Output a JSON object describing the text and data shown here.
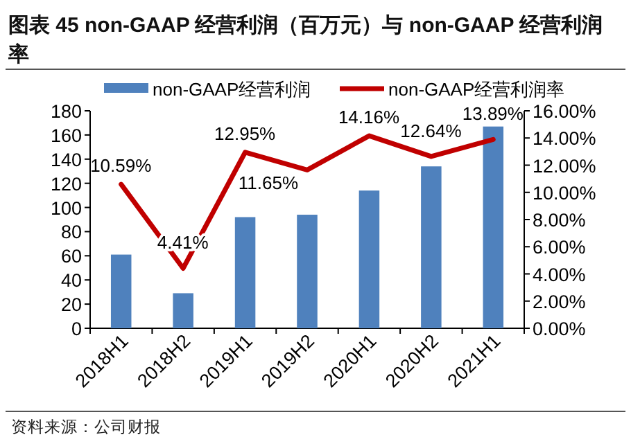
{
  "chart_data": {
    "type": "bar",
    "title": "图表 45  non-GAAP 经营利润（百万元）与 non-GAAP 经营利润率",
    "categories": [
      "2018H1",
      "2018H2",
      "2019H1",
      "2019H2",
      "2020H1",
      "2020H2",
      "2021H1"
    ],
    "series": [
      {
        "name": "non-GAAP经营利润",
        "color": "#4f81bd",
        "values": [
          61,
          29,
          92,
          94,
          114,
          134,
          167
        ]
      },
      {
        "name": "non-GAAP经营利润率",
        "type": "line",
        "axis": "y2",
        "color": "#c00000",
        "values": [
          10.59,
          4.41,
          12.95,
          11.65,
          14.16,
          12.64,
          13.89
        ],
        "value_labels": [
          "10.59%",
          "4.41%",
          "12.95%",
          "11.65%",
          "14.16%",
          "12.64%",
          "13.89%"
        ]
      }
    ],
    "ylim": [
      0,
      180
    ],
    "yticks": [
      0,
      20,
      40,
      60,
      80,
      100,
      120,
      140,
      160,
      180
    ],
    "y2lim": [
      0,
      16
    ],
    "y2ticks": [
      {
        "value": 0,
        "label": "0.00%"
      },
      {
        "value": 2,
        "label": "2.00%"
      },
      {
        "value": 4,
        "label": "4.00%"
      },
      {
        "value": 6,
        "label": "6.00%"
      },
      {
        "value": 8,
        "label": "8.00%"
      },
      {
        "value": 10,
        "label": "10.00%"
      },
      {
        "value": 12,
        "label": "12.00%"
      },
      {
        "value": 14,
        "label": "14.00%"
      },
      {
        "value": 16,
        "label": "16.00%"
      }
    ],
    "legend": "top",
    "grid": false,
    "marker": "none",
    "line_style": "solid",
    "annotations": [
      "资料来源：公司财报"
    ]
  }
}
